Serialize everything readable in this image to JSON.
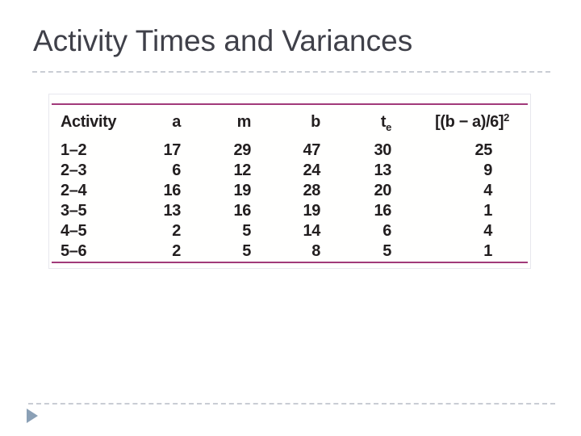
{
  "slide": {
    "title": "Activity Times and Variances"
  },
  "table": {
    "columns": [
      "Activity",
      "a",
      "m",
      "b",
      "te",
      "[(b − a)/6]²"
    ],
    "te_header": {
      "base": "t",
      "sub": "e"
    },
    "variance_header": {
      "base": "[(b − a)/6]",
      "sup": "2"
    },
    "rows": [
      [
        "1–2",
        "17",
        "29",
        "47",
        "30",
        "25"
      ],
      [
        "2–3",
        "6",
        "12",
        "24",
        "13",
        "9"
      ],
      [
        "2–4",
        "16",
        "19",
        "28",
        "20",
        "4"
      ],
      [
        "3–5",
        "13",
        "16",
        "19",
        "16",
        "1"
      ],
      [
        "4–5",
        "2",
        "5",
        "14",
        "6",
        "4"
      ],
      [
        "5–6",
        "2",
        "5",
        "8",
        "5",
        "1"
      ]
    ]
  },
  "colors": {
    "table_rule": "#a13a7a",
    "title_text": "#3f4049",
    "table_text": "#221e1f",
    "divider_dash": "#c9cdd4",
    "arrow": "#8ba0b6",
    "background": "#ffffff"
  },
  "icons": {
    "footer_arrow": "right-triangle"
  }
}
